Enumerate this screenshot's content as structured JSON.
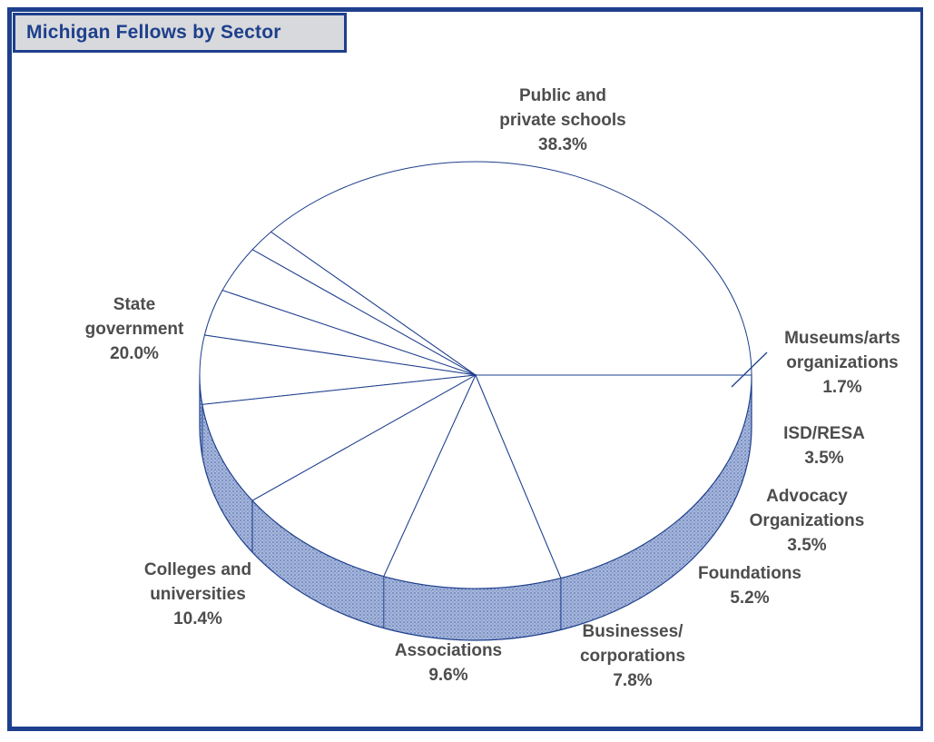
{
  "chart_data": {
    "type": "pie",
    "title": "Michigan Fellows by Sector",
    "slices": [
      {
        "label": "Public and private schools",
        "label_lines": [
          "Public and",
          "private schools"
        ],
        "percent": 38.3,
        "percent_text": "38.3%"
      },
      {
        "label": "Museums/arts organizations",
        "label_lines": [
          "Museums/arts",
          "organizations"
        ],
        "percent": 1.7,
        "percent_text": "1.7%"
      },
      {
        "label": "ISD/RESA",
        "label_lines": [
          "ISD/RESA"
        ],
        "percent": 3.5,
        "percent_text": "3.5%"
      },
      {
        "label": "Advocacy Organizations",
        "label_lines": [
          "Advocacy",
          "Organizations"
        ],
        "percent": 3.5,
        "percent_text": "3.5%"
      },
      {
        "label": "Foundations",
        "label_lines": [
          "Foundations"
        ],
        "percent": 5.2,
        "percent_text": "5.2%"
      },
      {
        "label": "Businesses/ corporations",
        "label_lines": [
          "Businesses/",
          "corporations"
        ],
        "percent": 7.8,
        "percent_text": "7.8%"
      },
      {
        "label": "Associations",
        "label_lines": [
          "Associations"
        ],
        "percent": 9.6,
        "percent_text": "9.6%"
      },
      {
        "label": "Colleges and universities",
        "label_lines": [
          "Colleges and",
          "universities"
        ],
        "percent": 10.4,
        "percent_text": "10.4%"
      },
      {
        "label": "State government",
        "label_lines": [
          "State",
          "government"
        ],
        "percent": 20.0,
        "percent_text": "20.0%"
      }
    ],
    "style": "3d-pie",
    "colors": {
      "frame": "#1e3f8c",
      "title_bg": "#d7d9dc",
      "side": "#8ea3d0",
      "label_text": "#4d4d4d"
    }
  }
}
